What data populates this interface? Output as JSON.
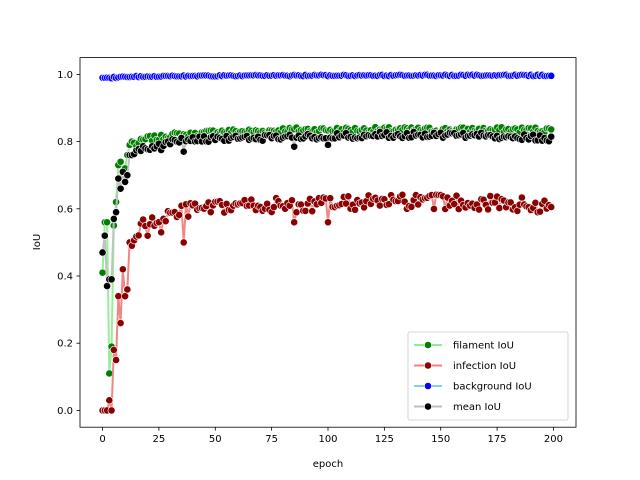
{
  "chart_data": {
    "type": "line",
    "xlabel": "epoch",
    "ylabel": "IoU",
    "xlim": [
      -10,
      210
    ],
    "ylim": [
      -0.05,
      1.05
    ],
    "xticks": [
      0,
      25,
      50,
      75,
      100,
      125,
      150,
      175,
      200
    ],
    "yticks": [
      0.0,
      0.2,
      0.4,
      0.6,
      0.8,
      1.0
    ],
    "grid": false,
    "legend_position": "lower-right",
    "epochs": 200,
    "series": [
      {
        "name": "filament IoU",
        "line_color": "#90ee90",
        "marker_color": "#008000",
        "anchors": [
          [
            0,
            0.41
          ],
          [
            1,
            0.56
          ],
          [
            2,
            0.56
          ],
          [
            3,
            0.11
          ],
          [
            4,
            0.19
          ],
          [
            5,
            0.55
          ],
          [
            6,
            0.62
          ],
          [
            7,
            0.73
          ],
          [
            8,
            0.74
          ],
          [
            9,
            0.7
          ],
          [
            10,
            0.72
          ],
          [
            11,
            0.76
          ],
          [
            12,
            0.79
          ],
          [
            13,
            0.8
          ],
          [
            15,
            0.79
          ],
          [
            17,
            0.8
          ],
          [
            20,
            0.81
          ],
          [
            25,
            0.81
          ],
          [
            30,
            0.82
          ],
          [
            40,
            0.82
          ],
          [
            50,
            0.83
          ],
          [
            60,
            0.83
          ],
          [
            70,
            0.83
          ],
          [
            80,
            0.835
          ],
          [
            90,
            0.835
          ],
          [
            100,
            0.835
          ],
          [
            120,
            0.835
          ],
          [
            140,
            0.835
          ],
          [
            160,
            0.835
          ],
          [
            180,
            0.835
          ],
          [
            199,
            0.835
          ]
        ],
        "noise": 0.008
      },
      {
        "name": "infection IoU",
        "line_color": "#f08080",
        "marker_color": "#8b0000",
        "anchors": [
          [
            0,
            0.0
          ],
          [
            1,
            0.0
          ],
          [
            2,
            0.0
          ],
          [
            3,
            0.03
          ],
          [
            4,
            0.0
          ],
          [
            5,
            0.18
          ],
          [
            6,
            0.15
          ],
          [
            7,
            0.34
          ],
          [
            8,
            0.26
          ],
          [
            9,
            0.42
          ],
          [
            10,
            0.34
          ],
          [
            11,
            0.36
          ],
          [
            12,
            0.5
          ],
          [
            13,
            0.49
          ],
          [
            15,
            0.52
          ],
          [
            17,
            0.55
          ],
          [
            20,
            0.55
          ],
          [
            25,
            0.57
          ],
          [
            30,
            0.58
          ],
          [
            35,
            0.59
          ],
          [
            40,
            0.6
          ],
          [
            50,
            0.6
          ],
          [
            60,
            0.61
          ],
          [
            70,
            0.61
          ],
          [
            80,
            0.61
          ],
          [
            90,
            0.61
          ],
          [
            100,
            0.615
          ],
          [
            120,
            0.62
          ],
          [
            140,
            0.62
          ],
          [
            160,
            0.62
          ],
          [
            180,
            0.615
          ],
          [
            199,
            0.605
          ]
        ],
        "noise": 0.022,
        "dips": [
          [
            36,
            0.5
          ],
          [
            26,
            0.53
          ],
          [
            85,
            0.56
          ],
          [
            100,
            0.56
          ],
          [
            13,
            0.49
          ],
          [
            20,
            0.52
          ]
        ]
      },
      {
        "name": "background IoU",
        "line_color": "#87ceeb",
        "marker_color": "#0000ff",
        "anchors": [
          [
            0,
            0.99
          ],
          [
            3,
            0.99
          ],
          [
            10,
            0.993
          ],
          [
            30,
            0.995
          ],
          [
            60,
            0.996
          ],
          [
            100,
            0.997
          ],
          [
            150,
            0.997
          ],
          [
            199,
            0.997
          ]
        ],
        "noise": 0.002
      },
      {
        "name": "mean IoU",
        "line_color": "#c0c0c0",
        "marker_color": "#000000",
        "anchors": [
          [
            0,
            0.47
          ],
          [
            1,
            0.52
          ],
          [
            2,
            0.37
          ],
          [
            3,
            0.39
          ],
          [
            4,
            0.39
          ],
          [
            5,
            0.57
          ],
          [
            6,
            0.59
          ],
          [
            7,
            0.69
          ],
          [
            8,
            0.66
          ],
          [
            9,
            0.71
          ],
          [
            10,
            0.68
          ],
          [
            11,
            0.7
          ],
          [
            12,
            0.76
          ],
          [
            13,
            0.76
          ],
          [
            15,
            0.77
          ],
          [
            17,
            0.78
          ],
          [
            20,
            0.78
          ],
          [
            25,
            0.79
          ],
          [
            30,
            0.8
          ],
          [
            40,
            0.805
          ],
          [
            50,
            0.81
          ],
          [
            60,
            0.81
          ],
          [
            70,
            0.81
          ],
          [
            80,
            0.815
          ],
          [
            90,
            0.815
          ],
          [
            100,
            0.815
          ],
          [
            120,
            0.82
          ],
          [
            140,
            0.82
          ],
          [
            160,
            0.82
          ],
          [
            180,
            0.815
          ],
          [
            199,
            0.81
          ]
        ],
        "noise": 0.009,
        "dips": [
          [
            36,
            0.77
          ],
          [
            26,
            0.775
          ],
          [
            85,
            0.785
          ],
          [
            100,
            0.79
          ]
        ]
      }
    ]
  }
}
